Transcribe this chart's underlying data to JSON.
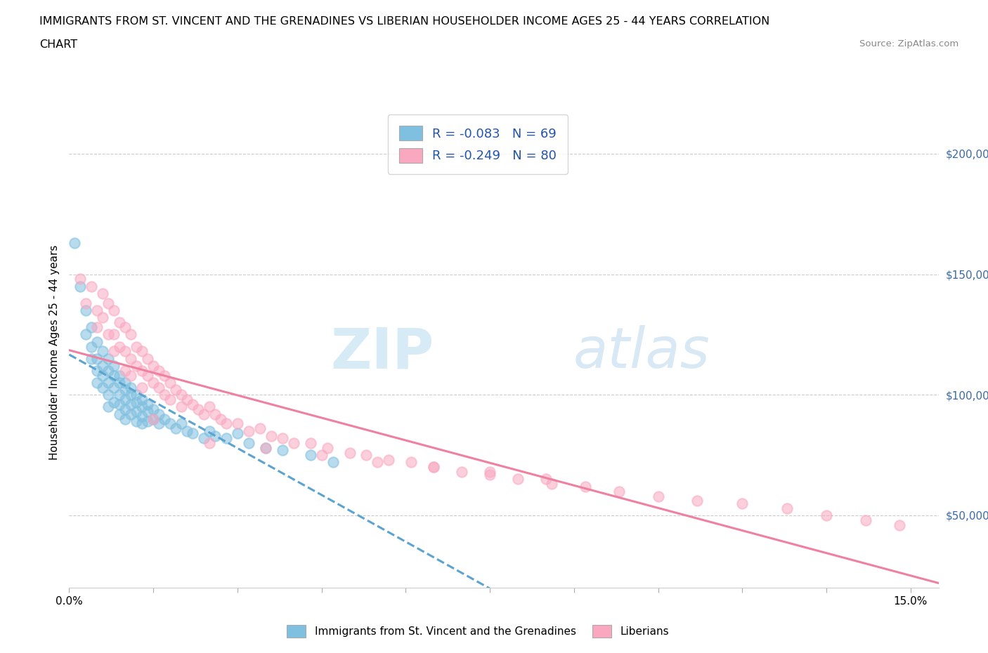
{
  "title_line1": "IMMIGRANTS FROM ST. VINCENT AND THE GRENADINES VS LIBERIAN HOUSEHOLDER INCOME AGES 25 - 44 YEARS CORRELATION",
  "title_line2": "CHART",
  "source_text": "Source: ZipAtlas.com",
  "ylabel": "Householder Income Ages 25 - 44 years",
  "xlim": [
    0.0,
    0.155
  ],
  "ylim": [
    20000,
    215000
  ],
  "xticks": [
    0.0,
    0.015,
    0.03,
    0.045,
    0.06,
    0.075,
    0.09,
    0.105,
    0.12,
    0.135,
    0.15
  ],
  "xticklabels": [
    "0.0%",
    "",
    "",
    "",
    "",
    "",
    "",
    "",
    "",
    "",
    "15.0%"
  ],
  "ytick_positions": [
    50000,
    100000,
    150000,
    200000
  ],
  "ytick_labels": [
    "$50,000",
    "$100,000",
    "$150,000",
    "$200,000"
  ],
  "legend_entry1": "R = -0.083   N = 69",
  "legend_entry2": "R = -0.249   N = 80",
  "legend_label1": "Immigrants from St. Vincent and the Grenadines",
  "legend_label2": "Liberians",
  "color_blue": "#7fbfdf",
  "color_pink": "#f9a8c0",
  "watermark": "ZIPatlas",
  "blue_scatter_x": [
    0.001,
    0.002,
    0.003,
    0.003,
    0.004,
    0.004,
    0.004,
    0.005,
    0.005,
    0.005,
    0.005,
    0.006,
    0.006,
    0.006,
    0.006,
    0.007,
    0.007,
    0.007,
    0.007,
    0.007,
    0.008,
    0.008,
    0.008,
    0.008,
    0.009,
    0.009,
    0.009,
    0.009,
    0.009,
    0.01,
    0.01,
    0.01,
    0.01,
    0.01,
    0.011,
    0.011,
    0.011,
    0.011,
    0.012,
    0.012,
    0.012,
    0.012,
    0.013,
    0.013,
    0.013,
    0.013,
    0.014,
    0.014,
    0.014,
    0.015,
    0.015,
    0.016,
    0.016,
    0.017,
    0.018,
    0.019,
    0.02,
    0.021,
    0.022,
    0.024,
    0.025,
    0.026,
    0.028,
    0.03,
    0.032,
    0.035,
    0.038,
    0.043,
    0.047
  ],
  "blue_scatter_y": [
    163000,
    145000,
    135000,
    125000,
    128000,
    120000,
    115000,
    122000,
    115000,
    110000,
    105000,
    118000,
    112000,
    108000,
    103000,
    115000,
    110000,
    105000,
    100000,
    95000,
    112000,
    108000,
    103000,
    97000,
    108000,
    105000,
    100000,
    96000,
    92000,
    105000,
    102000,
    98000,
    94000,
    90000,
    103000,
    100000,
    96000,
    92000,
    100000,
    97000,
    93000,
    89000,
    98000,
    95000,
    91000,
    88000,
    96000,
    93000,
    89000,
    94000,
    90000,
    92000,
    88000,
    90000,
    88000,
    86000,
    88000,
    85000,
    84000,
    82000,
    85000,
    83000,
    82000,
    84000,
    80000,
    78000,
    77000,
    75000,
    72000
  ],
  "pink_scatter_x": [
    0.002,
    0.003,
    0.004,
    0.005,
    0.005,
    0.006,
    0.006,
    0.007,
    0.007,
    0.008,
    0.008,
    0.008,
    0.009,
    0.009,
    0.01,
    0.01,
    0.01,
    0.011,
    0.011,
    0.011,
    0.012,
    0.012,
    0.013,
    0.013,
    0.013,
    0.014,
    0.014,
    0.015,
    0.015,
    0.016,
    0.016,
    0.017,
    0.017,
    0.018,
    0.018,
    0.019,
    0.02,
    0.02,
    0.021,
    0.022,
    0.023,
    0.024,
    0.025,
    0.026,
    0.027,
    0.028,
    0.03,
    0.032,
    0.034,
    0.036,
    0.038,
    0.04,
    0.043,
    0.046,
    0.05,
    0.053,
    0.057,
    0.061,
    0.065,
    0.07,
    0.075,
    0.08,
    0.086,
    0.092,
    0.098,
    0.105,
    0.112,
    0.12,
    0.128,
    0.135,
    0.142,
    0.148,
    0.015,
    0.025,
    0.035,
    0.045,
    0.055,
    0.065,
    0.075,
    0.085
  ],
  "pink_scatter_y": [
    148000,
    138000,
    145000,
    135000,
    128000,
    142000,
    132000,
    138000,
    125000,
    135000,
    125000,
    118000,
    130000,
    120000,
    128000,
    118000,
    110000,
    125000,
    115000,
    108000,
    120000,
    112000,
    118000,
    110000,
    103000,
    115000,
    108000,
    112000,
    105000,
    110000,
    103000,
    108000,
    100000,
    105000,
    98000,
    102000,
    100000,
    95000,
    98000,
    96000,
    94000,
    92000,
    95000,
    92000,
    90000,
    88000,
    88000,
    85000,
    86000,
    83000,
    82000,
    80000,
    80000,
    78000,
    76000,
    75000,
    73000,
    72000,
    70000,
    68000,
    67000,
    65000,
    63000,
    62000,
    60000,
    58000,
    56000,
    55000,
    53000,
    50000,
    48000,
    46000,
    90000,
    80000,
    78000,
    75000,
    72000,
    70000,
    68000,
    65000
  ]
}
